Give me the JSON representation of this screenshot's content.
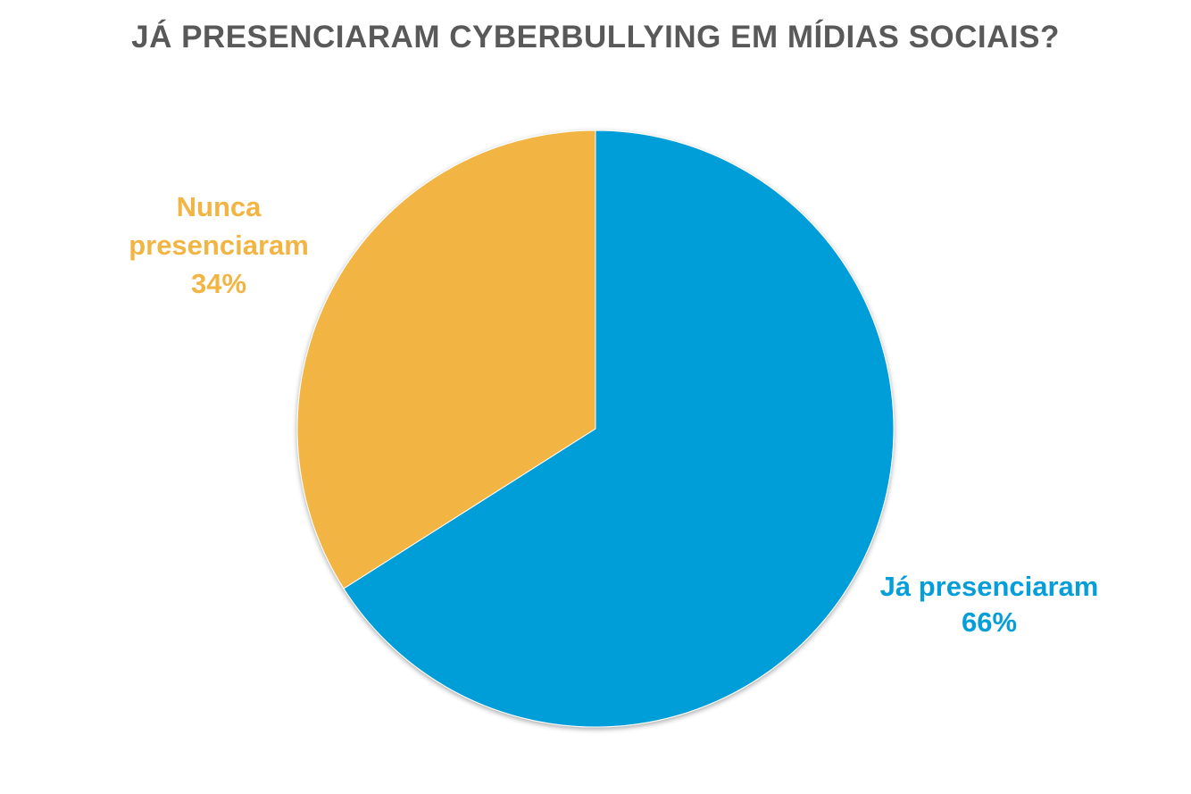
{
  "chart_data": {
    "type": "pie",
    "title": "JÁ PRESENCIARAM CYBERBULLYING EM MÍDIAS SOCIAIS?",
    "slices": [
      {
        "label_lines": [
          "Já presenciaram",
          "66%"
        ],
        "value": 66,
        "color": "#069ed9"
      },
      {
        "label_lines": [
          "Nunca",
          "presenciaram",
          "34%"
        ],
        "value": 34,
        "color": "#f2b443"
      }
    ],
    "start_angle_deg": 0,
    "direction": "clockwise",
    "legend": "none"
  }
}
